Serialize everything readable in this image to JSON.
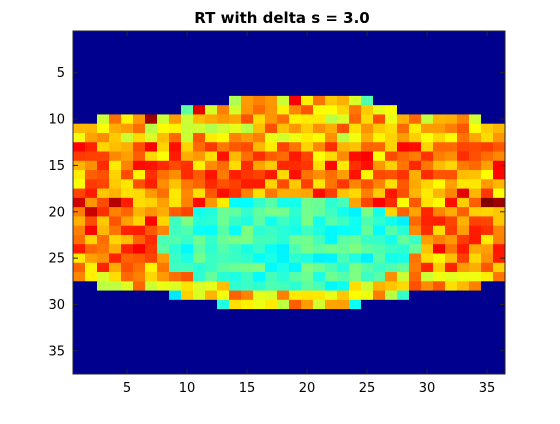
{
  "chart_data": {
    "type": "heatmap",
    "title": "RT with delta s = 3.0",
    "xlabel": "",
    "ylabel": "",
    "colormap": "jet",
    "x_range": [
      0.5,
      36.5
    ],
    "y_range": [
      0.5,
      37.5
    ],
    "y_reversed": true,
    "x_ticks": [
      5,
      10,
      15,
      20,
      25,
      30,
      35
    ],
    "y_ticks": [
      5,
      10,
      15,
      20,
      25,
      30,
      35
    ],
    "x_tick_labels": [
      "5",
      "10",
      "15",
      "20",
      "25",
      "30",
      "35"
    ],
    "y_tick_labels": [
      "5",
      "10",
      "15",
      "20",
      "25",
      "30",
      "35"
    ],
    "n_cols": 36,
    "n_rows": 37,
    "background_value": 0.0,
    "row_extents": [
      {
        "row": 8,
        "start": 14,
        "end": 25
      },
      {
        "row": 9,
        "start": 10,
        "end": 27
      },
      {
        "row": 10,
        "start": 3,
        "end": 34
      },
      {
        "row": 11,
        "start": 1,
        "end": 36
      },
      {
        "row": 12,
        "start": 1,
        "end": 36
      },
      {
        "row": 13,
        "start": 1,
        "end": 36
      },
      {
        "row": 14,
        "start": 1,
        "end": 36
      },
      {
        "row": 15,
        "start": 1,
        "end": 36
      },
      {
        "row": 16,
        "start": 1,
        "end": 36
      },
      {
        "row": 17,
        "start": 1,
        "end": 36
      },
      {
        "row": 18,
        "start": 1,
        "end": 36
      },
      {
        "row": 19,
        "start": 1,
        "end": 36
      },
      {
        "row": 20,
        "start": 1,
        "end": 36
      },
      {
        "row": 21,
        "start": 1,
        "end": 36
      },
      {
        "row": 22,
        "start": 1,
        "end": 36
      },
      {
        "row": 23,
        "start": 1,
        "end": 36
      },
      {
        "row": 24,
        "start": 1,
        "end": 36
      },
      {
        "row": 25,
        "start": 1,
        "end": 36
      },
      {
        "row": 26,
        "start": 1,
        "end": 36
      },
      {
        "row": 27,
        "start": 1,
        "end": 36
      },
      {
        "row": 28,
        "start": 3,
        "end": 34
      },
      {
        "row": 29,
        "start": 9,
        "end": 28
      },
      {
        "row": 30,
        "start": 13,
        "end": 24
      }
    ],
    "value_summary": "Outer rows of the active band are yellow/orange (approx 0.65-0.9); centre rows 19-28 and columns 13-25 are cyan/green (approx 0.35-0.5); red/dark-red hot spots (approx 0.9-1.0) near rows 19-20 at both left and right edges.",
    "hot_spots": [
      {
        "row": 19,
        "col": 1,
        "value": 0.92
      },
      {
        "row": 19,
        "col": 4,
        "value": 0.95
      },
      {
        "row": 20,
        "col": 2,
        "value": 0.93
      },
      {
        "row": 19,
        "col": 35,
        "value": 1.0
      },
      {
        "row": 19,
        "col": 36,
        "value": 0.97
      },
      {
        "row": 18,
        "col": 33,
        "value": 0.9
      },
      {
        "row": 10,
        "col": 7,
        "value": 0.97
      },
      {
        "row": 8,
        "col": 19,
        "value": 0.88
      },
      {
        "row": 9,
        "col": 11,
        "value": 0.9
      },
      {
        "row": 24,
        "col": 1,
        "value": 0.85
      }
    ],
    "grid": false,
    "legend": "none",
    "colors": {
      "background": "#00008f",
      "axes_bg": "#ffffff",
      "axis_line": "#262626",
      "text": "#000000"
    }
  }
}
